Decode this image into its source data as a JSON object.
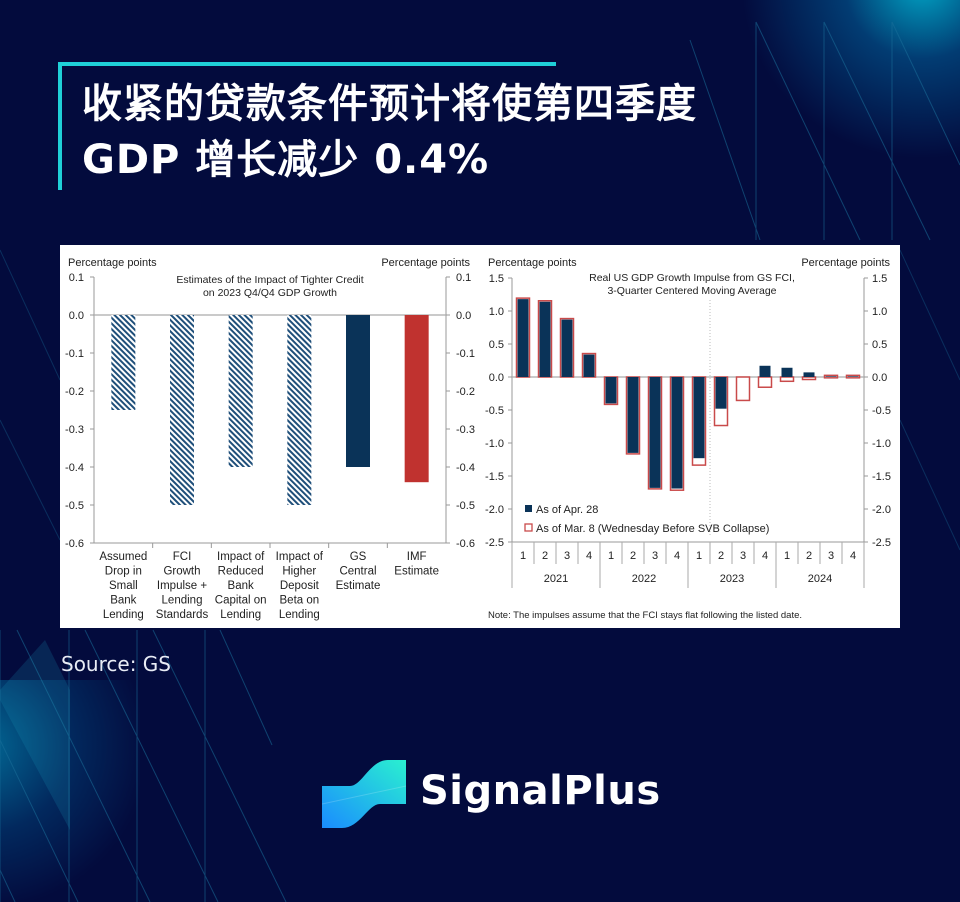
{
  "header": {
    "title_line1": "收紧的贷款条件预计将使第四季度",
    "title_line2": "GDP 增长减少 0.4%",
    "accent_color": "#1fd0d8"
  },
  "footer": {
    "source": "Source: GS",
    "brand": "SignalPlus"
  },
  "colors": {
    "background": "#030b3d",
    "navy_bar": "#0a3358",
    "red_bar": "#c0322f",
    "outline_red": "#c94a4a",
    "hatch_blue": "#1f4f7a"
  },
  "chart_data": [
    {
      "type": "bar",
      "title": "Estimates of the Impact of Tighter Credit on 2023 Q4/Q4 GDP Growth",
      "title_line1": "Estimates of the Impact of Tighter Credit",
      "title_line2": "on 2023 Q4/Q4 GDP Growth",
      "ylabel_left": "Percentage points",
      "ylabel_right": "Percentage points",
      "ylim": [
        -0.6,
        0.1
      ],
      "yticks": [
        "0.1",
        "0.0",
        "-0.1",
        "-0.2",
        "-0.3",
        "-0.4",
        "-0.5",
        "-0.6"
      ],
      "categories": [
        "Assumed Drop in Small Bank Lending",
        "FCI Growth Impulse + Lending Standards",
        "Impact of Reduced Bank Capital on Lending",
        "Impact of Higher Deposit Beta on Lending",
        "GS Central Estimate",
        "IMF Estimate"
      ],
      "category_lines": [
        [
          "Assumed",
          "Drop in",
          "Small",
          "Bank",
          "Lending"
        ],
        [
          "FCI",
          "Growth",
          "Impulse +",
          "Lending",
          "Standards"
        ],
        [
          "Impact of",
          "Reduced",
          "Bank",
          "Capital on",
          "Lending"
        ],
        [
          "Impact of",
          "Higher",
          "Deposit",
          "Beta on",
          "Lending"
        ],
        [
          "GS",
          "Central",
          "Estimate"
        ],
        [
          "IMF",
          "Estimate"
        ]
      ],
      "values": [
        -0.25,
        -0.5,
        -0.4,
        -0.5,
        -0.4,
        -0.44
      ],
      "styles": [
        "hatched",
        "hatched",
        "hatched",
        "hatched",
        "solid-navy",
        "solid-red"
      ],
      "grid": false
    },
    {
      "type": "bar",
      "title": "Real US GDP Growth Impulse from GS FCI, 3-Quarter Centered Moving Average",
      "title_line1": "Real US GDP Growth Impulse from GS FCI,",
      "title_line2": "3-Quarter Centered Moving Average",
      "ylabel_left": "Percentage points",
      "ylabel_right": "Percentage points",
      "ylim": [
        -2.5,
        1.5
      ],
      "yticks": [
        "1.5",
        "1.0",
        "0.5",
        "0.0",
        "-0.5",
        "-1.0",
        "-1.5",
        "-2.0",
        "-2.5"
      ],
      "categories": [
        "2021Q1",
        "2021Q2",
        "2021Q3",
        "2021Q4",
        "2022Q1",
        "2022Q2",
        "2022Q3",
        "2022Q4",
        "2023Q1",
        "2023Q2",
        "2023Q3",
        "2023Q4",
        "2024Q1",
        "2024Q2",
        "2024Q3",
        "2024Q4"
      ],
      "quarter_labels": [
        "1",
        "2",
        "3",
        "4",
        "1",
        "2",
        "3",
        "4",
        "1",
        "2",
        "3",
        "4",
        "1",
        "2",
        "3",
        "4"
      ],
      "year_labels": [
        "2021",
        "2022",
        "2023",
        "2024"
      ],
      "series": [
        {
          "name": "As of Apr. 28",
          "style": "solid-navy",
          "values": [
            1.18,
            1.14,
            0.87,
            0.34,
            -0.4,
            -1.15,
            -1.68,
            -1.69,
            -1.23,
            -0.48,
            0.0,
            0.17,
            0.14,
            0.07,
            0.01,
            0.01
          ]
        },
        {
          "name": "As of Mar. 8 (Wednesday Before SVB Collapse)",
          "style": "outline-red",
          "values": [
            1.18,
            1.14,
            0.87,
            0.34,
            -0.4,
            -1.15,
            -1.68,
            -1.7,
            -1.32,
            -0.72,
            -0.34,
            -0.14,
            -0.05,
            -0.02,
            0.01,
            0.01
          ]
        }
      ],
      "legend": [
        "As of Apr. 28",
        "As of Mar. 8 (Wednesday Before SVB Collapse)"
      ],
      "legend_position": "lower-left",
      "annotation_divider": "dotted vertical line between 2023Q1 and 2023Q2",
      "note": "Note: The impulses assume that the FCI stays flat following the listed date.",
      "grid": false
    }
  ]
}
